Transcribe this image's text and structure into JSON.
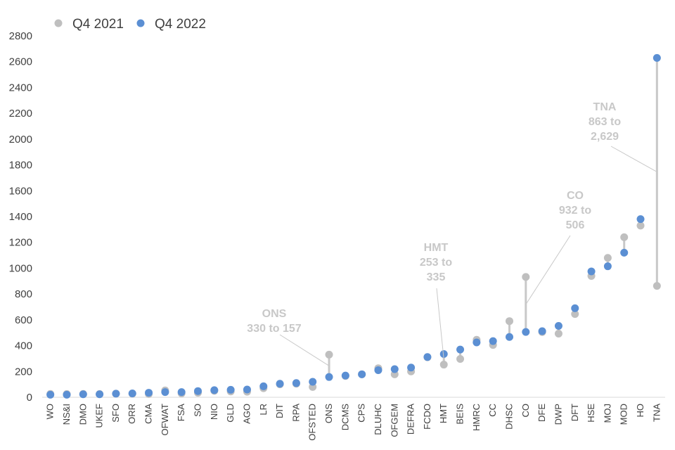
{
  "chart_data": {
    "type": "scatter",
    "subtype": "dumbbell",
    "title": "",
    "xlabel": "",
    "ylabel": "",
    "ylim": [
      0,
      2800
    ],
    "yticks": [
      0,
      200,
      400,
      600,
      800,
      1000,
      1200,
      1400,
      1600,
      1800,
      2000,
      2200,
      2400,
      2600,
      2800
    ],
    "grid": false,
    "legend_position": "top-left",
    "categories": [
      "WO",
      "NS&I",
      "DMO",
      "UKEF",
      "SFO",
      "ORR",
      "CMA",
      "OFWAT",
      "FSA",
      "SO",
      "NIO",
      "GLD",
      "AGO",
      "LR",
      "DIT",
      "RPA",
      "OFSTED",
      "ONS",
      "DCMS",
      "CPS",
      "DLUHC",
      "OFGEM",
      "DEFRA",
      "FCDO",
      "HMT",
      "BEIS",
      "HMRC",
      "CC",
      "DHSC",
      "CO",
      "DFE",
      "DWP",
      "DFT",
      "HSE",
      "MOJ",
      "MOD",
      "HO",
      "TNA"
    ],
    "series": [
      {
        "name": "Q4 2021",
        "color": "#bfbfbf",
        "values": [
          26,
          25,
          26,
          25,
          28,
          27,
          25,
          53,
          30,
          35,
          50,
          45,
          43,
          70,
          100,
          105,
          80,
          330,
          165,
          178,
          225,
          178,
          200,
          310,
          253,
          297,
          445,
          405,
          590,
          932,
          505,
          493,
          645,
          940,
          1080,
          1240,
          1330,
          863
        ]
      },
      {
        "name": "Q4 2022",
        "color": "#5b8fd3",
        "values": [
          20,
          20,
          23,
          23,
          28,
          30,
          35,
          40,
          40,
          48,
          55,
          58,
          60,
          85,
          105,
          110,
          120,
          157,
          168,
          178,
          210,
          218,
          230,
          312,
          335,
          370,
          425,
          435,
          467,
          506,
          512,
          553,
          690,
          975,
          1015,
          1120,
          1380,
          2629
        ]
      }
    ],
    "annotations": [
      {
        "category": "ONS",
        "lines": [
          "ONS",
          "330 to 157"
        ]
      },
      {
        "category": "HMT",
        "lines": [
          "HMT",
          "253 to",
          "335"
        ]
      },
      {
        "category": "CO",
        "lines": [
          "CO",
          "932 to",
          "506"
        ]
      },
      {
        "category": "TNA",
        "lines": [
          "TNA",
          "863 to",
          "2,629"
        ]
      }
    ]
  }
}
